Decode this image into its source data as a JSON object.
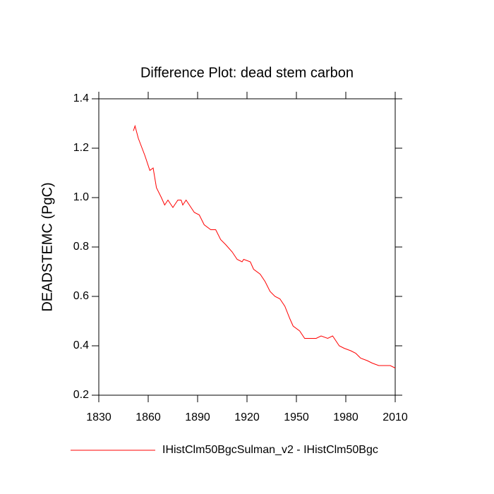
{
  "chart_data": {
    "type": "line",
    "title": "Difference Plot: dead stem carbon",
    "y_label": "DEADSTEMC  (PgC)",
    "x": [
      1851,
      1852,
      1854,
      1858,
      1861,
      1863,
      1865,
      1868,
      1870,
      1872,
      1875,
      1878,
      1880,
      1881,
      1883,
      1888,
      1891,
      1894,
      1898,
      1901,
      1904,
      1907,
      1911,
      1914,
      1917,
      1918,
      1922,
      1924,
      1928,
      1931,
      1934,
      1937,
      1940,
      1943,
      1946,
      1948,
      1952,
      1955,
      1958,
      1962,
      1965,
      1969,
      1972,
      1976,
      1979,
      1983,
      1986,
      1989,
      1993,
      1996,
      2000,
      2003,
      2007,
      2010
    ],
    "series": [
      {
        "name": "IHistClm50BgcSulman_v2 - IHistClm50Bgc",
        "color": "#ff0000",
        "values": [
          1.27,
          1.29,
          1.24,
          1.17,
          1.11,
          1.12,
          1.04,
          1.0,
          0.97,
          0.99,
          0.96,
          0.99,
          0.99,
          0.97,
          0.99,
          0.94,
          0.93,
          0.89,
          0.87,
          0.87,
          0.83,
          0.81,
          0.78,
          0.75,
          0.74,
          0.75,
          0.74,
          0.71,
          0.69,
          0.66,
          0.62,
          0.6,
          0.59,
          0.56,
          0.51,
          0.48,
          0.46,
          0.43,
          0.43,
          0.43,
          0.44,
          0.43,
          0.44,
          0.4,
          0.39,
          0.38,
          0.37,
          0.35,
          0.34,
          0.33,
          0.32,
          0.32,
          0.32,
          0.31
        ]
      }
    ],
    "xlim": [
      1830,
      2010
    ],
    "xticks": [
      1830,
      1860,
      1890,
      1920,
      1950,
      1980,
      2010
    ],
    "ylim": [
      0.2,
      1.4
    ],
    "yticks": [
      0.2,
      0.4,
      0.6,
      0.8,
      1.0,
      1.2,
      1.4
    ],
    "legend": "bottom"
  }
}
